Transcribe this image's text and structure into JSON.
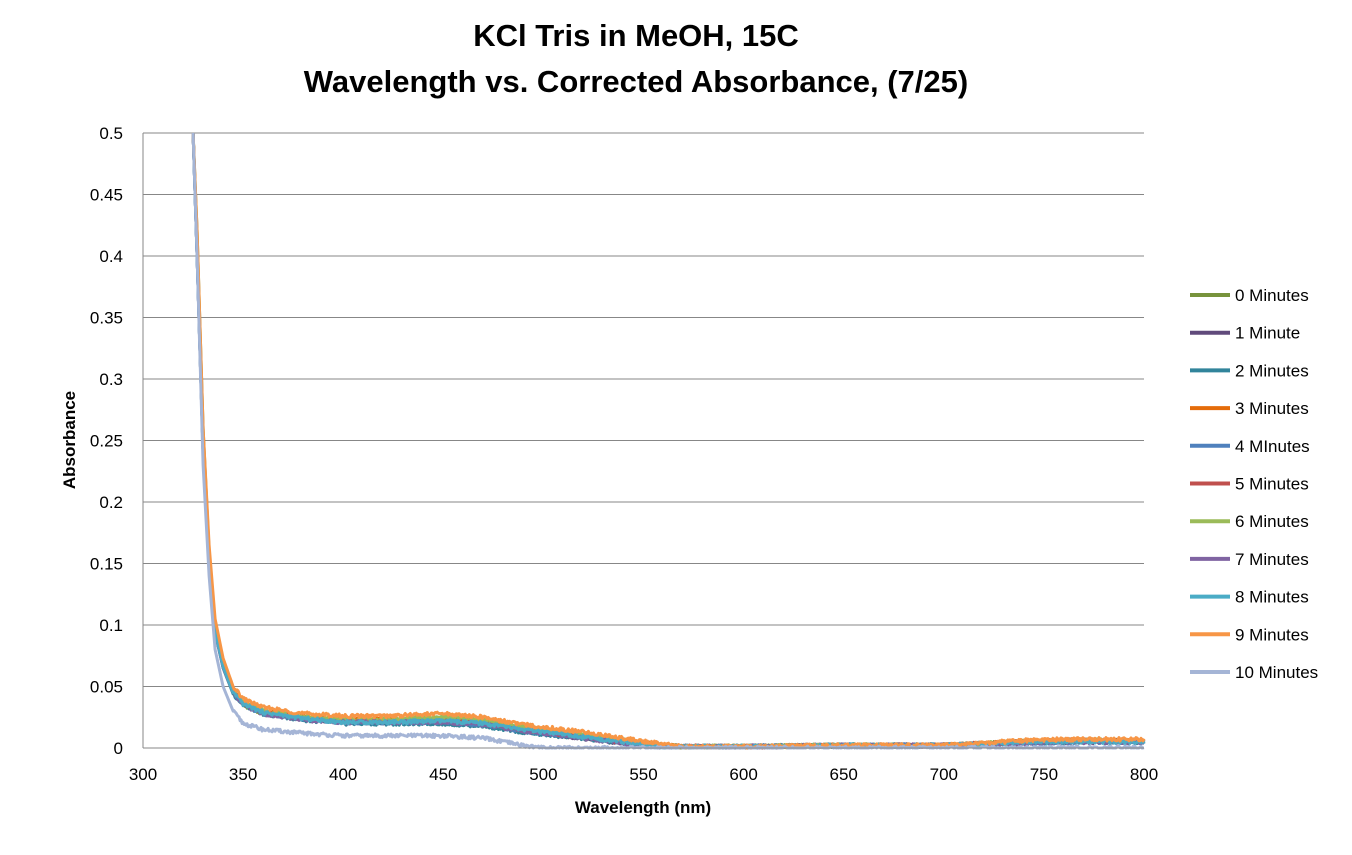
{
  "chart_data": {
    "type": "line",
    "title_line1": "KCl Tris in MeOH, 15C",
    "title_line2": "Wavelength vs. Corrected Absorbance, (7/25)",
    "xlabel": "Wavelength (nm)",
    "ylabel": "Absorbance",
    "xlim": [
      300,
      800
    ],
    "ylim": [
      0,
      0.5
    ],
    "x_ticks": [
      "300",
      "350",
      "400",
      "450",
      "500",
      "550",
      "600",
      "650",
      "700",
      "750",
      "800"
    ],
    "y_ticks": [
      "0",
      "0.05",
      "0.1",
      "0.15",
      "0.2",
      "0.25",
      "0.3",
      "0.35",
      "0.4",
      "0.45",
      "0.5"
    ],
    "grid": "horizontal",
    "legend_position": "right",
    "x": [
      325,
      327,
      330,
      333,
      336,
      340,
      345,
      350,
      360,
      380,
      400,
      420,
      450,
      470,
      490,
      500,
      520,
      540,
      560,
      570,
      600,
      650,
      700,
      740,
      760,
      800
    ],
    "series": [
      {
        "name": "0 Minutes",
        "color": "#77933c",
        "values": [
          0.5,
          0.42,
          0.26,
          0.16,
          0.1,
          0.07,
          0.046,
          0.035,
          0.028,
          0.024,
          0.022,
          0.022,
          0.023,
          0.021,
          0.016,
          0.014,
          0.01,
          0.005,
          0.002,
          0.001,
          0.001,
          0.002,
          0.002,
          0.005,
          0.006,
          0.006
        ]
      },
      {
        "name": "1 Minute",
        "color": "#604a7b",
        "values": [
          0.5,
          0.4,
          0.24,
          0.15,
          0.095,
          0.066,
          0.045,
          0.036,
          0.029,
          0.024,
          0.021,
          0.021,
          0.021,
          0.019,
          0.014,
          0.012,
          0.008,
          0.004,
          0.001,
          0.001,
          0.001,
          0.002,
          0.002,
          0.004,
          0.005,
          0.005
        ]
      },
      {
        "name": "2 Minutes",
        "color": "#31849b",
        "values": [
          0.5,
          0.4,
          0.24,
          0.15,
          0.094,
          0.065,
          0.044,
          0.035,
          0.028,
          0.023,
          0.02,
          0.02,
          0.02,
          0.018,
          0.013,
          0.011,
          0.008,
          0.004,
          0.001,
          0.001,
          0.001,
          0.002,
          0.002,
          0.004,
          0.005,
          0.005
        ]
      },
      {
        "name": "3 Minutes",
        "color": "#e46c0a",
        "values": [
          0.5,
          0.41,
          0.25,
          0.155,
          0.098,
          0.068,
          0.047,
          0.037,
          0.03,
          0.025,
          0.023,
          0.023,
          0.024,
          0.022,
          0.016,
          0.014,
          0.01,
          0.006,
          0.002,
          0.001,
          0.001,
          0.002,
          0.002,
          0.005,
          0.006,
          0.006
        ]
      },
      {
        "name": "4 MInutes",
        "color": "#4f81bd",
        "values": [
          0.5,
          0.4,
          0.24,
          0.15,
          0.095,
          0.066,
          0.045,
          0.036,
          0.028,
          0.024,
          0.021,
          0.021,
          0.021,
          0.019,
          0.014,
          0.012,
          0.009,
          0.005,
          0.001,
          0.001,
          0.001,
          0.002,
          0.002,
          0.004,
          0.005,
          0.005
        ]
      },
      {
        "name": "5 Minutes",
        "color": "#c0504d",
        "values": [
          0.5,
          0.41,
          0.25,
          0.155,
          0.097,
          0.067,
          0.046,
          0.036,
          0.029,
          0.025,
          0.022,
          0.022,
          0.023,
          0.021,
          0.015,
          0.013,
          0.009,
          0.005,
          0.002,
          0.001,
          0.001,
          0.002,
          0.002,
          0.005,
          0.006,
          0.006
        ]
      },
      {
        "name": "6 Minutes",
        "color": "#9bbb59",
        "values": [
          0.5,
          0.41,
          0.25,
          0.156,
          0.098,
          0.068,
          0.047,
          0.037,
          0.03,
          0.025,
          0.023,
          0.023,
          0.025,
          0.023,
          0.017,
          0.015,
          0.011,
          0.006,
          0.002,
          0.001,
          0.001,
          0.002,
          0.002,
          0.005,
          0.006,
          0.006
        ]
      },
      {
        "name": "7 Minutes",
        "color": "#8064a2",
        "values": [
          0.5,
          0.4,
          0.24,
          0.15,
          0.094,
          0.065,
          0.045,
          0.035,
          0.028,
          0.023,
          0.021,
          0.021,
          0.021,
          0.019,
          0.014,
          0.012,
          0.008,
          0.004,
          0.001,
          0.001,
          0.001,
          0.002,
          0.002,
          0.004,
          0.005,
          0.005
        ]
      },
      {
        "name": "8 Minutes",
        "color": "#4bacc6",
        "values": [
          0.5,
          0.4,
          0.24,
          0.15,
          0.095,
          0.066,
          0.045,
          0.036,
          0.029,
          0.024,
          0.021,
          0.021,
          0.022,
          0.02,
          0.015,
          0.013,
          0.009,
          0.005,
          0.001,
          0.001,
          0.001,
          0.002,
          0.002,
          0.005,
          0.005,
          0.005
        ]
      },
      {
        "name": "9 Minutes",
        "color": "#f79646",
        "values": [
          0.5,
          0.42,
          0.26,
          0.165,
          0.105,
          0.073,
          0.05,
          0.04,
          0.033,
          0.028,
          0.026,
          0.026,
          0.028,
          0.025,
          0.019,
          0.017,
          0.013,
          0.008,
          0.003,
          0.001,
          0.001,
          0.002,
          0.002,
          0.006,
          0.007,
          0.007
        ]
      },
      {
        "name": "10 Minutes",
        "color": "#a5b5d6",
        "values": [
          0.5,
          0.4,
          0.23,
          0.14,
          0.08,
          0.05,
          0.03,
          0.02,
          0.015,
          0.012,
          0.01,
          0.01,
          0.01,
          0.008,
          0.002,
          0.0,
          0.0,
          0.0,
          0.0,
          0.0,
          0.0,
          0.0,
          0.0,
          0.0,
          0.0,
          0.0
        ]
      }
    ]
  }
}
